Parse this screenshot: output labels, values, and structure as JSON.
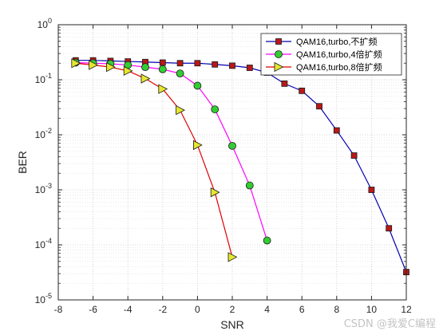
{
  "chart_data": {
    "type": "line",
    "title": "",
    "xlabel": "SNR",
    "ylabel": "BER",
    "xlim": [
      -8,
      12
    ],
    "ylim": [
      1e-05,
      1
    ],
    "yscale": "log",
    "grid": true,
    "xticks": [
      -8,
      -6,
      -4,
      -2,
      0,
      2,
      4,
      6,
      8,
      10,
      12
    ],
    "yticks": [
      {
        "value": 1e-05,
        "mant": "10",
        "exp": "-5"
      },
      {
        "value": 0.0001,
        "mant": "10",
        "exp": "-4"
      },
      {
        "value": 0.001,
        "mant": "10",
        "exp": "-3"
      },
      {
        "value": 0.01,
        "mant": "10",
        "exp": "-2"
      },
      {
        "value": 0.1,
        "mant": "10",
        "exp": "-1"
      },
      {
        "value": 1,
        "mant": "10",
        "exp": "0"
      }
    ],
    "legend_position": "top-right",
    "series": [
      {
        "name": "QAM16,turbo,不扩频",
        "color": "#0000b0",
        "marker": "square",
        "marker_fill": "#b81818",
        "x": [
          -7,
          -6,
          -5,
          -4,
          -3,
          -2,
          -1,
          0,
          1,
          2,
          3,
          4,
          5,
          6,
          7,
          8,
          9,
          10,
          11,
          12
        ],
        "y": [
          0.225,
          0.225,
          0.22,
          0.215,
          0.21,
          0.205,
          0.2,
          0.2,
          0.19,
          0.18,
          0.165,
          0.135,
          0.085,
          0.063,
          0.033,
          0.012,
          0.0042,
          0.001,
          0.0002,
          3.2e-05
        ]
      },
      {
        "name": "QAM16,turbo,4倍扩频",
        "color": "#ff00ff",
        "marker": "circle",
        "marker_fill": "#33cc33",
        "x": [
          -7,
          -6,
          -5,
          -4,
          -3,
          -2,
          -1,
          0,
          1,
          2,
          3,
          4
        ],
        "y": [
          0.205,
          0.2,
          0.195,
          0.185,
          0.17,
          0.155,
          0.13,
          0.078,
          0.029,
          0.0063,
          0.0012,
          0.00012
        ]
      },
      {
        "name": "QAM16,turbo,8倍扩频",
        "color": "#e00000",
        "marker": "triangle-right",
        "marker_fill": "#e6e62e",
        "x": [
          -7,
          -6,
          -5,
          -4,
          -3,
          -2,
          -1,
          0,
          1,
          2
        ],
        "y": [
          0.2,
          0.185,
          0.17,
          0.145,
          0.105,
          0.068,
          0.028,
          0.0065,
          0.0009,
          6e-05
        ]
      }
    ]
  },
  "watermark": "CSDN @我爱C编程"
}
